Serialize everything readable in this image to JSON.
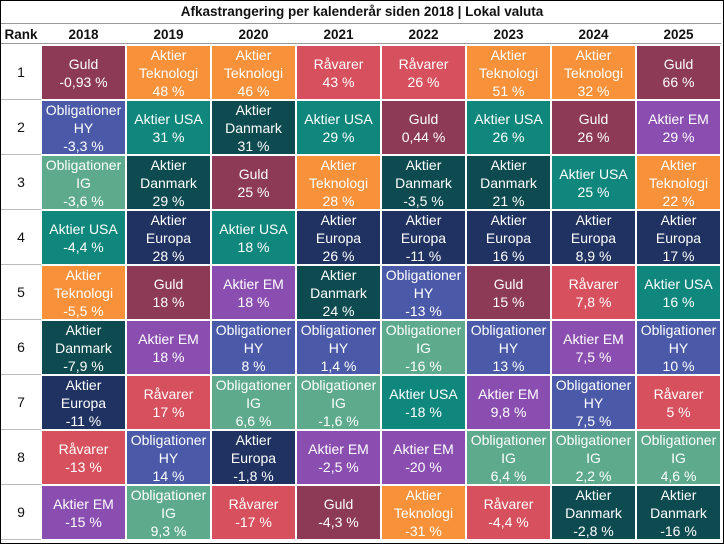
{
  "table": {
    "title": "Afkastrangering per kalenderår siden 2018 | Lokal valuta",
    "headers": [
      "Rank",
      "2018",
      "2019",
      "2020",
      "2021",
      "2022",
      "2023",
      "2024",
      "2025"
    ],
    "colors": {
      "Guld": "#8c3a55",
      "Aktier\nTeknologi": "#f7913a",
      "Råvarer": "#d6505e",
      "Obligationer\nHY": "#4b5aa8",
      "Aktier USA": "#0f877c",
      "Aktier\nDanmark": "#0e4b50",
      "Obligationer\nIG": "#5dab8c",
      "Aktier\nEuropa": "#1f3261",
      "Aktier EM": "#8a4db0"
    },
    "rows": [
      {
        "rank": "1",
        "cells": [
          {
            "label": "Guld",
            "value": "-0,93 %"
          },
          {
            "label": "Aktier\nTeknologi",
            "value": "48 %"
          },
          {
            "label": "Aktier\nTeknologi",
            "value": "46 %"
          },
          {
            "label": "Råvarer",
            "value": "43 %"
          },
          {
            "label": "Råvarer",
            "value": "26 %"
          },
          {
            "label": "Aktier\nTeknologi",
            "value": "51 %"
          },
          {
            "label": "Aktier\nTeknologi",
            "value": "32 %"
          },
          {
            "label": "Guld",
            "value": "66 %"
          }
        ]
      },
      {
        "rank": "2",
        "cells": [
          {
            "label": "Obligationer\nHY",
            "value": "-3,3 %"
          },
          {
            "label": "Aktier USA",
            "value": "31 %"
          },
          {
            "label": "Aktier\nDanmark",
            "value": "31 %"
          },
          {
            "label": "Aktier USA",
            "value": "29 %"
          },
          {
            "label": "Guld",
            "value": "0,44 %"
          },
          {
            "label": "Aktier USA",
            "value": "26 %"
          },
          {
            "label": "Guld",
            "value": "26 %"
          },
          {
            "label": "Aktier EM",
            "value": "29 %"
          }
        ]
      },
      {
        "rank": "3",
        "cells": [
          {
            "label": "Obligationer\nIG",
            "value": "-3,6 %"
          },
          {
            "label": "Aktier\nDanmark",
            "value": "29 %"
          },
          {
            "label": "Guld",
            "value": "25 %"
          },
          {
            "label": "Aktier\nTeknologi",
            "value": "28 %"
          },
          {
            "label": "Aktier\nDanmark",
            "value": "-3,5 %"
          },
          {
            "label": "Aktier\nDanmark",
            "value": "21 %"
          },
          {
            "label": "Aktier USA",
            "value": "25 %"
          },
          {
            "label": "Aktier\nTeknologi",
            "value": "22 %"
          }
        ]
      },
      {
        "rank": "4",
        "cells": [
          {
            "label": "Aktier USA",
            "value": "-4,4 %"
          },
          {
            "label": "Aktier\nEuropa",
            "value": "28 %"
          },
          {
            "label": "Aktier USA",
            "value": "18 %"
          },
          {
            "label": "Aktier\nEuropa",
            "value": "26 %"
          },
          {
            "label": "Aktier\nEuropa",
            "value": "-11 %"
          },
          {
            "label": "Aktier\nEuropa",
            "value": "16 %"
          },
          {
            "label": "Aktier\nEuropa",
            "value": "8,9 %"
          },
          {
            "label": "Aktier\nEuropa",
            "value": "17 %"
          }
        ]
      },
      {
        "rank": "5",
        "cells": [
          {
            "label": "Aktier\nTeknologi",
            "value": "-5,5 %"
          },
          {
            "label": "Guld",
            "value": "18 %"
          },
          {
            "label": "Aktier EM",
            "value": "18 %"
          },
          {
            "label": "Aktier\nDanmark",
            "value": "24 %"
          },
          {
            "label": "Obligationer\nHY",
            "value": "-13 %"
          },
          {
            "label": "Guld",
            "value": "15 %"
          },
          {
            "label": "Råvarer",
            "value": "7,8 %"
          },
          {
            "label": "Aktier USA",
            "value": "16 %"
          }
        ]
      },
      {
        "rank": "6",
        "cells": [
          {
            "label": "Aktier\nDanmark",
            "value": "-7,9 %"
          },
          {
            "label": "Aktier EM",
            "value": "18 %"
          },
          {
            "label": "Obligationer\nHY",
            "value": "8 %"
          },
          {
            "label": "Obligationer\nHY",
            "value": "1,4 %"
          },
          {
            "label": "Obligationer\nIG",
            "value": "-16 %"
          },
          {
            "label": "Obligationer\nHY",
            "value": "13 %"
          },
          {
            "label": "Aktier EM",
            "value": "7,5 %"
          },
          {
            "label": "Obligationer\nHY",
            "value": "10 %"
          }
        ]
      },
      {
        "rank": "7",
        "cells": [
          {
            "label": "Aktier\nEuropa",
            "value": "-11 %"
          },
          {
            "label": "Råvarer",
            "value": "17 %"
          },
          {
            "label": "Obligationer\nIG",
            "value": "6,6 %"
          },
          {
            "label": "Obligationer\nIG",
            "value": "-1,6 %"
          },
          {
            "label": "Aktier USA",
            "value": "-18 %"
          },
          {
            "label": "Aktier EM",
            "value": "9,8 %"
          },
          {
            "label": "Obligationer\nHY",
            "value": "7,5 %"
          },
          {
            "label": "Råvarer",
            "value": "5 %"
          }
        ]
      },
      {
        "rank": "8",
        "cells": [
          {
            "label": "Råvarer",
            "value": "-13 %"
          },
          {
            "label": "Obligationer\nHY",
            "value": "14 %"
          },
          {
            "label": "Aktier\nEuropa",
            "value": "-1,8 %"
          },
          {
            "label": "Aktier EM",
            "value": "-2,5 %"
          },
          {
            "label": "Aktier EM",
            "value": "-20 %"
          },
          {
            "label": "Obligationer\nIG",
            "value": "6,4 %"
          },
          {
            "label": "Obligationer\nIG",
            "value": "2,2 %"
          },
          {
            "label": "Obligationer\nIG",
            "value": "4,6 %"
          }
        ]
      },
      {
        "rank": "9",
        "cells": [
          {
            "label": "Aktier EM",
            "value": "-15 %"
          },
          {
            "label": "Obligationer\nIG",
            "value": "9,3 %"
          },
          {
            "label": "Råvarer",
            "value": "-17 %"
          },
          {
            "label": "Guld",
            "value": "-4,3 %"
          },
          {
            "label": "Aktier\nTeknologi",
            "value": "-31 %"
          },
          {
            "label": "Råvarer",
            "value": "-4,4 %"
          },
          {
            "label": "Aktier\nDanmark",
            "value": "-2,8 %"
          },
          {
            "label": "Aktier\nDanmark",
            "value": "-16 %"
          }
        ]
      }
    ]
  }
}
